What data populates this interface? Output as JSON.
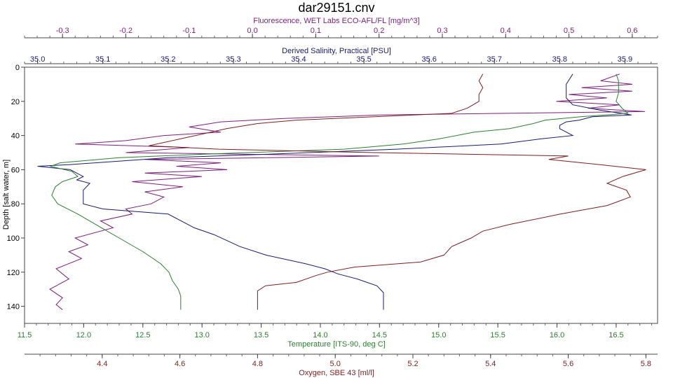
{
  "chart_data": {
    "type": "line",
    "title": "dar29151.cnv",
    "ylabel": "Depth [salt water, m]",
    "ylim": [
      0,
      150
    ],
    "y_inverted": true,
    "y_ticks": [
      "0",
      "20",
      "40",
      "60",
      "80",
      "100",
      "120",
      "140"
    ],
    "grid": false,
    "axes": {
      "fluorescence": {
        "label": "Fluorescence, WET Labs ECO-AFL/FL [mg/m^3]",
        "position": "top-outer",
        "color": "#7a1f7a",
        "range": [
          -0.36,
          0.64
        ],
        "ticks": [
          "-0.3",
          "-0.2",
          "-0.1",
          "0.0",
          "0.1",
          "0.2",
          "0.3",
          "0.4",
          "0.5",
          "0.6"
        ]
      },
      "salinity": {
        "label": "Derived Salinity, Practical [PSU]",
        "position": "top-inner",
        "color": "#1a1a6e",
        "range": [
          34.98,
          35.95
        ],
        "ticks": [
          "35.0",
          "35.1",
          "35.2",
          "35.3",
          "35.4",
          "35.5",
          "35.6",
          "35.7",
          "35.8",
          "35.9"
        ]
      },
      "temperature": {
        "label": "Temperature [ITS-90, deg C]",
        "position": "bottom-inner",
        "color": "#2e7d32",
        "range": [
          11.5,
          16.85
        ],
        "ticks": [
          "11.5",
          "12.0",
          "12.5",
          "13.0",
          "13.5",
          "14.0",
          "14.5",
          "15.0",
          "15.5",
          "16.0",
          "16.5"
        ]
      },
      "oxygen": {
        "label": "Oxygen, SBE 43 [ml/l]",
        "position": "bottom-outer",
        "color": "#7a1f1f",
        "range": [
          4.2,
          5.83
        ],
        "ticks": [
          "4.4",
          "4.6",
          "4.8",
          "5.0",
          "5.2",
          "5.4",
          "5.6",
          "5.8"
        ]
      }
    },
    "series": [
      {
        "axis": "fluorescence",
        "color": "#7a1f7a",
        "points": [
          [
            0.58,
            4
          ],
          [
            0.55,
            8
          ],
          [
            0.6,
            10
          ],
          [
            0.52,
            12
          ],
          [
            0.6,
            14
          ],
          [
            0.5,
            16
          ],
          [
            0.56,
            18
          ],
          [
            0.48,
            20
          ],
          [
            0.58,
            22
          ],
          [
            0.53,
            24
          ],
          [
            0.62,
            26
          ],
          [
            0.4,
            27
          ],
          [
            0.2,
            28
          ],
          [
            0.05,
            30
          ],
          [
            -0.05,
            32
          ],
          [
            -0.1,
            35
          ],
          [
            -0.05,
            38
          ],
          [
            -0.14,
            40
          ],
          [
            -0.2,
            43
          ],
          [
            -0.28,
            45
          ],
          [
            -0.1,
            47
          ],
          [
            -0.2,
            50
          ],
          [
            0.2,
            52
          ],
          [
            -0.17,
            54
          ],
          [
            -0.05,
            56
          ],
          [
            -0.12,
            58
          ],
          [
            -0.04,
            60
          ],
          [
            -0.17,
            62
          ],
          [
            -0.08,
            64
          ],
          [
            -0.19,
            67
          ],
          [
            -0.11,
            70
          ],
          [
            -0.17,
            73
          ],
          [
            -0.14,
            76
          ],
          [
            -0.16,
            80
          ],
          [
            -0.2,
            83
          ],
          [
            -0.19,
            86
          ],
          [
            -0.24,
            90
          ],
          [
            -0.22,
            94
          ],
          [
            -0.28,
            100
          ],
          [
            -0.26,
            104
          ],
          [
            -0.29,
            108
          ],
          [
            -0.27,
            112
          ],
          [
            -0.31,
            118
          ],
          [
            -0.29,
            124
          ],
          [
            -0.32,
            130
          ],
          [
            -0.3,
            135
          ],
          [
            -0.31,
            139
          ],
          [
            -0.3,
            142
          ]
        ]
      },
      {
        "axis": "salinity",
        "color": "#1a1a6e",
        "points": [
          [
            35.82,
            4
          ],
          [
            35.81,
            10
          ],
          [
            35.81,
            18
          ],
          [
            35.82,
            22
          ],
          [
            35.86,
            25
          ],
          [
            35.91,
            28
          ],
          [
            35.85,
            29
          ],
          [
            35.83,
            31
          ],
          [
            35.81,
            32
          ],
          [
            35.8,
            34
          ],
          [
            35.8,
            36
          ],
          [
            35.82,
            40
          ],
          [
            35.77,
            42
          ],
          [
            35.71,
            45
          ],
          [
            35.55,
            48
          ],
          [
            35.35,
            51
          ],
          [
            35.2,
            53
          ],
          [
            35.05,
            57
          ],
          [
            35.0,
            58
          ],
          [
            35.05,
            60
          ],
          [
            35.07,
            64
          ],
          [
            35.06,
            66
          ],
          [
            35.08,
            68
          ],
          [
            35.07,
            72
          ],
          [
            35.07,
            80
          ],
          [
            35.1,
            83
          ],
          [
            35.2,
            86
          ],
          [
            35.22,
            90
          ],
          [
            35.24,
            94
          ],
          [
            35.27,
            98
          ],
          [
            35.31,
            105
          ],
          [
            35.35,
            110
          ],
          [
            35.41,
            115
          ],
          [
            35.44,
            118
          ],
          [
            35.46,
            121
          ],
          [
            35.49,
            124
          ],
          [
            35.52,
            128
          ],
          [
            35.53,
            132
          ],
          [
            35.53,
            138
          ],
          [
            35.53,
            142
          ]
        ]
      },
      {
        "axis": "temperature",
        "color": "#2e7d32",
        "points": [
          [
            16.5,
            4
          ],
          [
            16.52,
            8
          ],
          [
            16.52,
            15
          ],
          [
            16.5,
            20
          ],
          [
            16.55,
            24
          ],
          [
            16.6,
            27
          ],
          [
            16.2,
            29
          ],
          [
            15.9,
            31
          ],
          [
            15.8,
            33
          ],
          [
            15.6,
            36
          ],
          [
            15.3,
            38
          ],
          [
            15.0,
            42
          ],
          [
            14.7,
            45
          ],
          [
            14.2,
            48
          ],
          [
            13.0,
            51
          ],
          [
            12.3,
            53
          ],
          [
            11.8,
            56
          ],
          [
            11.72,
            58
          ],
          [
            11.9,
            61
          ],
          [
            11.95,
            64
          ],
          [
            11.82,
            67
          ],
          [
            11.76,
            70
          ],
          [
            11.73,
            75
          ],
          [
            11.78,
            80
          ],
          [
            11.95,
            86
          ],
          [
            12.05,
            90
          ],
          [
            12.15,
            94
          ],
          [
            12.3,
            100
          ],
          [
            12.5,
            108
          ],
          [
            12.65,
            115
          ],
          [
            12.72,
            120
          ],
          [
            12.75,
            125
          ],
          [
            12.8,
            130
          ],
          [
            12.82,
            134
          ],
          [
            12.82,
            142
          ]
        ]
      },
      {
        "axis": "oxygen",
        "color": "#7a1f1f",
        "points": [
          [
            5.38,
            4
          ],
          [
            5.37,
            8
          ],
          [
            5.38,
            12
          ],
          [
            5.37,
            16
          ],
          [
            5.37,
            20
          ],
          [
            5.34,
            24
          ],
          [
            5.3,
            27
          ],
          [
            5.1,
            29
          ],
          [
            4.9,
            31
          ],
          [
            4.8,
            33
          ],
          [
            4.72,
            36
          ],
          [
            4.66,
            39
          ],
          [
            4.6,
            42
          ],
          [
            4.52,
            46
          ],
          [
            4.7,
            48
          ],
          [
            5.1,
            50
          ],
          [
            5.6,
            52
          ],
          [
            5.55,
            54
          ],
          [
            5.68,
            57
          ],
          [
            5.8,
            60
          ],
          [
            5.74,
            64
          ],
          [
            5.7,
            68
          ],
          [
            5.75,
            72
          ],
          [
            5.76,
            76
          ],
          [
            5.7,
            81
          ],
          [
            5.58,
            86
          ],
          [
            5.45,
            92
          ],
          [
            5.38,
            96
          ],
          [
            5.35,
            100
          ],
          [
            5.3,
            105
          ],
          [
            5.28,
            110
          ],
          [
            5.22,
            114
          ],
          [
            5.05,
            117
          ],
          [
            4.98,
            120
          ],
          [
            4.95,
            122
          ],
          [
            4.9,
            126
          ],
          [
            4.82,
            128
          ],
          [
            4.8,
            131
          ],
          [
            4.8,
            136
          ],
          [
            4.8,
            142
          ]
        ]
      }
    ]
  }
}
